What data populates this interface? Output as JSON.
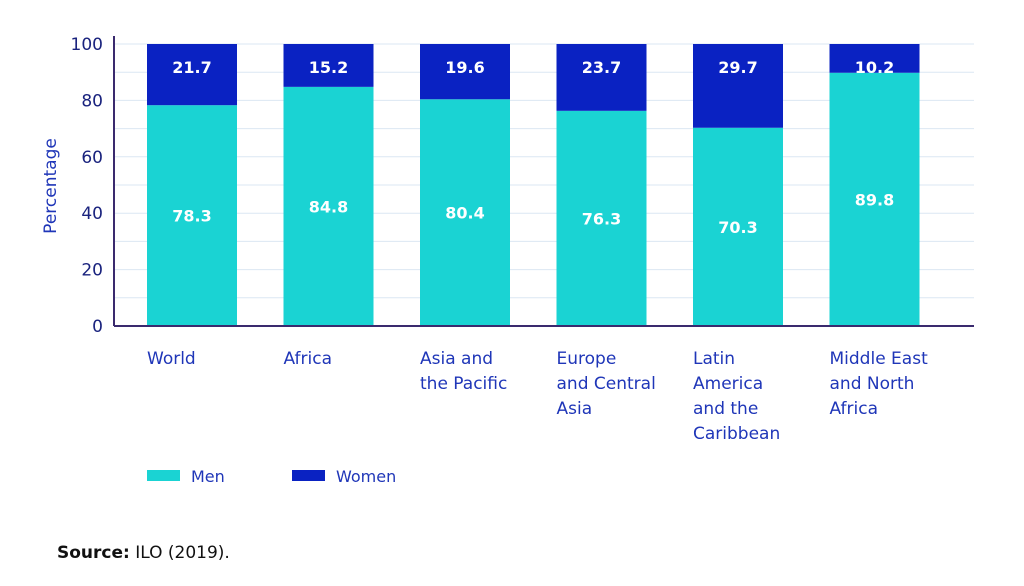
{
  "chart_data": {
    "type": "bar",
    "stacked": true,
    "ylabel": "Percentage",
    "xlabel": "",
    "ylim": [
      0,
      100
    ],
    "yticks": [
      0,
      20,
      40,
      60,
      80,
      100
    ],
    "grid": true,
    "legend_position": "bottom-left",
    "categories": [
      "World",
      "Africa",
      "Asia and the Pacific",
      "Europe and Central Asia",
      "Latin America and the Caribbean",
      "Middle East and North Africa"
    ],
    "category_lines": [
      [
        "World"
      ],
      [
        "Africa"
      ],
      [
        "Asia and",
        "the Pacific"
      ],
      [
        "Europe",
        "and Central",
        "Asia"
      ],
      [
        "Latin",
        "America",
        "and the",
        "Caribbean"
      ],
      [
        "Middle East",
        "and North",
        "Africa"
      ]
    ],
    "series": [
      {
        "name": "Men",
        "color": "#1ad3d3",
        "values": [
          78.3,
          84.8,
          80.4,
          76.3,
          70.3,
          89.8
        ]
      },
      {
        "name": "Women",
        "color": "#0a22c2",
        "values": [
          21.7,
          15.2,
          19.6,
          23.7,
          29.7,
          10.2
        ]
      }
    ]
  },
  "source": {
    "label": "Source:",
    "text": "ILO (2019)."
  },
  "colors": {
    "axis": "#3a2a6e",
    "grid": "#dbe7f3",
    "label": "#1f36b8"
  }
}
